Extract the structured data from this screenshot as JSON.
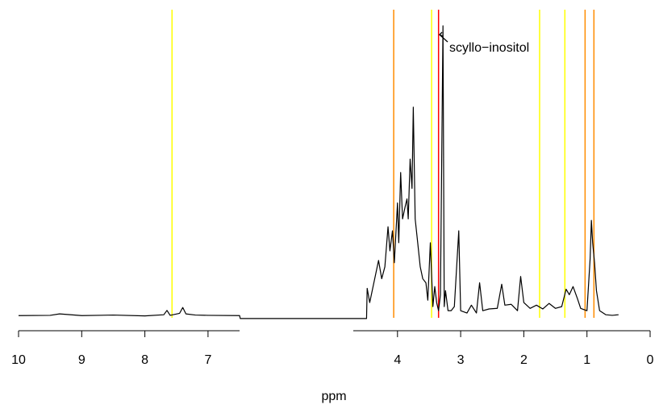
{
  "chart_data": {
    "type": "line",
    "xlabel": "ppm",
    "annotation": "scyllo−inositol",
    "xlim": [
      10,
      0
    ],
    "ylim": [
      -5,
      105
    ],
    "xticks": [
      10,
      9,
      8,
      7,
      4,
      3,
      2,
      1,
      0
    ],
    "xaxis_segments": [
      [
        10,
        6.5
      ],
      [
        4.7,
        0
      ]
    ],
    "color": "#000000",
    "x": [
      10,
      9.5,
      9.35,
      9,
      8.5,
      8,
      7.7,
      7.65,
      7.6,
      7.45,
      7.4,
      7.35,
      7.2,
      7,
      6.5,
      6.49,
      4.65,
      4.49,
      4.48,
      4.44,
      4.3,
      4.25,
      4.2,
      4.15,
      4.12,
      4.08,
      4.05,
      4.0,
      3.98,
      3.95,
      3.92,
      3.88,
      3.85,
      3.83,
      3.8,
      3.77,
      3.75,
      3.72,
      3.68,
      3.64,
      3.6,
      3.55,
      3.52,
      3.48,
      3.44,
      3.41,
      3.38,
      3.35,
      3.32,
      3.28,
      3.26,
      3.24,
      3.2,
      3.15,
      3.1,
      3.03,
      3.0,
      2.9,
      2.83,
      2.75,
      2.7,
      2.65,
      2.55,
      2.42,
      2.35,
      2.3,
      2.2,
      2.1,
      2.05,
      2.0,
      1.9,
      1.8,
      1.7,
      1.6,
      1.5,
      1.4,
      1.33,
      1.28,
      1.22,
      1.15,
      1.1,
      1.0,
      0.95,
      0.93,
      0.91,
      0.88,
      0.85,
      0.8,
      0.7,
      0.6,
      0.5
    ],
    "values": [
      0.2,
      0.3,
      0.8,
      0.2,
      0.4,
      0.1,
      0.5,
      2,
      0.3,
      1,
      3,
      0.8,
      0.4,
      0.3,
      0.2,
      -0.8,
      -0.8,
      -0.8,
      9.6,
      4.7,
      19.2,
      12.9,
      17,
      30.8,
      22.5,
      29.4,
      18.4,
      39,
      25.3,
      49.5,
      33.5,
      37.6,
      40.4,
      33.5,
      54.1,
      44,
      72,
      33.5,
      25.3,
      17,
      12.9,
      11.5,
      5.5,
      25.3,
      3.3,
      10.2,
      4.7,
      1.9,
      7.4,
      100,
      3.3,
      8.8,
      1.9,
      1.9,
      3.3,
      29.4,
      1.9,
      1.1,
      3.8,
      1.1,
      11.5,
      1.9,
      2.5,
      2.7,
      11,
      3.8,
      4.1,
      1.9,
      13.7,
      4.7,
      2.7,
      3.8,
      2.5,
      4.4,
      2.7,
      3.3,
      9.3,
      7.4,
      10.2,
      6,
      2.7,
      1.9,
      19.8,
      33,
      25.3,
      18.4,
      8.8,
      1.9,
      0.5,
      0.3,
      0.5
    ],
    "vlines": [
      {
        "x": 7.57,
        "color": "#ffff00"
      },
      {
        "x": 4.06,
        "color": "#ff8c00"
      },
      {
        "x": 3.46,
        "color": "#ffff00"
      },
      {
        "x": 3.35,
        "color": "#ff0000"
      },
      {
        "x": 1.75,
        "color": "#ffff00"
      },
      {
        "x": 1.35,
        "color": "#ffff00"
      },
      {
        "x": 1.03,
        "color": "#ff8c00"
      },
      {
        "x": 0.89,
        "color": "#ff8c00"
      }
    ]
  }
}
